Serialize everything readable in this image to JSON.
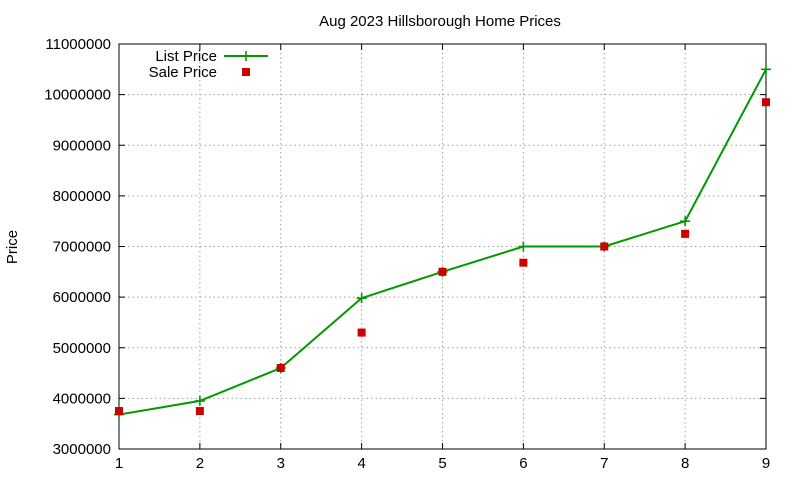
{
  "chart_data": {
    "type": "line",
    "title": "Aug 2023 Hillsborough Home Prices",
    "xlabel": "",
    "ylabel": "Price",
    "x": [
      1,
      2,
      3,
      4,
      5,
      6,
      7,
      8,
      9
    ],
    "xlim": [
      1,
      9
    ],
    "ylim": [
      3000000,
      11000000
    ],
    "yticks": [
      3000000,
      4000000,
      5000000,
      6000000,
      7000000,
      8000000,
      9000000,
      10000000,
      11000000
    ],
    "xticks": [
      1,
      2,
      3,
      4,
      5,
      6,
      7,
      8,
      9
    ],
    "grid": true,
    "legend_position": "top-left",
    "series": [
      {
        "name": "List Price",
        "style": "line-points",
        "marker": "plus",
        "color": "#009900",
        "values": [
          3680000,
          3950000,
          4600000,
          5980000,
          6500000,
          7000000,
          7000000,
          7500000,
          10500000
        ]
      },
      {
        "name": "Sale Price",
        "style": "points",
        "marker": "square",
        "color": "#cc0000",
        "values": [
          3750000,
          3750000,
          4600000,
          5300000,
          6500000,
          6680000,
          7000000,
          7250000,
          9850000
        ]
      }
    ]
  }
}
